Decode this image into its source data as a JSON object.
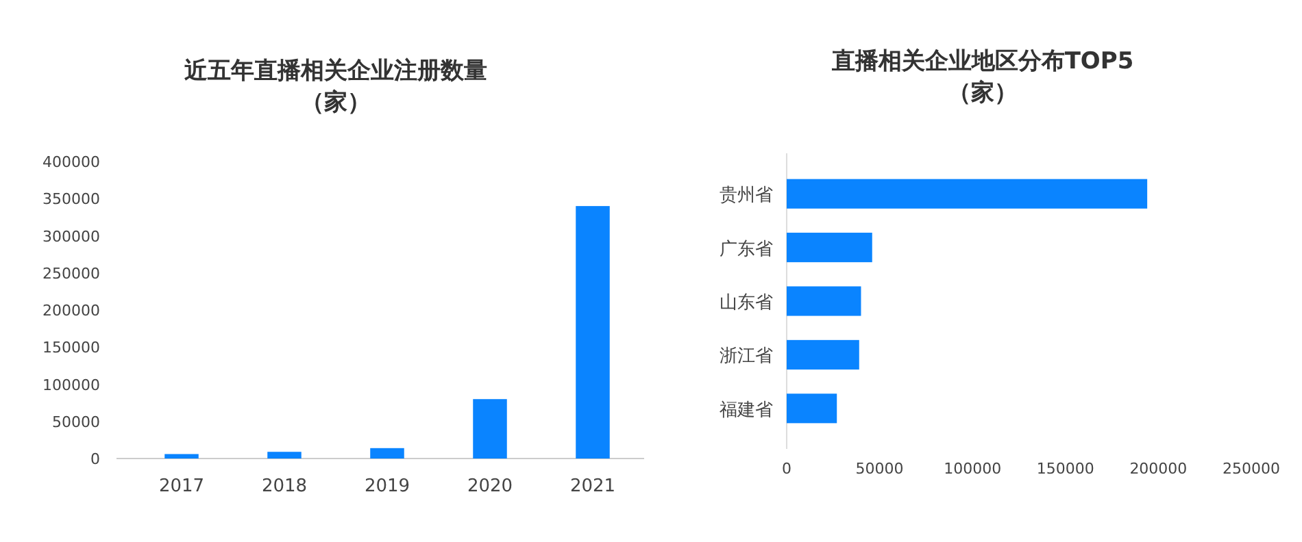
{
  "chart_data": [
    {
      "type": "bar",
      "title": "近五年直播相关企业注册数量",
      "subtitle": "（家）",
      "categories": [
        "2017",
        "2018",
        "2019",
        "2020",
        "2021"
      ],
      "values": [
        6000,
        9000,
        14000,
        80000,
        340000
      ],
      "color": "#0a84ff",
      "ylim": [
        0,
        400000
      ],
      "yticks": [
        0,
        50000,
        100000,
        150000,
        200000,
        250000,
        300000,
        350000,
        400000
      ]
    },
    {
      "type": "bar",
      "orientation": "horizontal",
      "title": "直播相关企业地区分布TOP5",
      "subtitle": "（家）",
      "categories": [
        "贵州省",
        "广东省",
        "山东省",
        "浙江省",
        "福建省"
      ],
      "values": [
        194000,
        46000,
        40000,
        39000,
        27000
      ],
      "color": "#0a84ff",
      "xlim": [
        0,
        250000
      ],
      "xticks": [
        0,
        50000,
        100000,
        150000,
        200000,
        250000
      ]
    }
  ]
}
